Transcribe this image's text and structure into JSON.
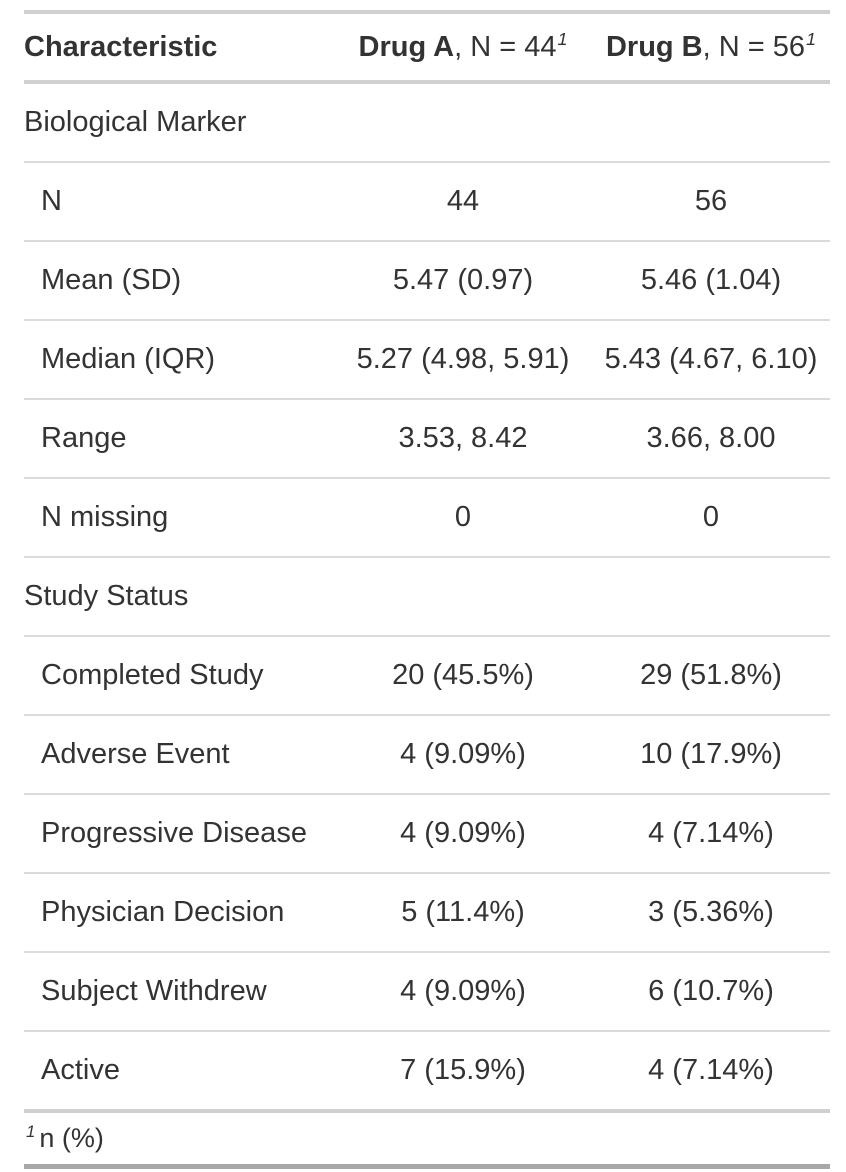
{
  "chart_data": {
    "type": "table",
    "header": {
      "characteristic": "Characteristic",
      "drug_a": {
        "name": "Drug A",
        "suffix": ", N = 44",
        "footnote_mark": "1"
      },
      "drug_b": {
        "name": "Drug B",
        "suffix": ", N = 56",
        "footnote_mark": "1"
      }
    },
    "rows": [
      {
        "label": "Biological Marker",
        "group": true,
        "indent": false,
        "drug_a": "",
        "drug_b": ""
      },
      {
        "label": "N",
        "group": false,
        "indent": true,
        "drug_a": "44",
        "drug_b": "56"
      },
      {
        "label": "Mean (SD)",
        "group": false,
        "indent": true,
        "drug_a": "5.47 (0.97)",
        "drug_b": "5.46 (1.04)"
      },
      {
        "label": "Median (IQR)",
        "group": false,
        "indent": true,
        "drug_a": "5.27 (4.98, 5.91)",
        "drug_b": "5.43 (4.67, 6.10)"
      },
      {
        "label": "Range",
        "group": false,
        "indent": true,
        "drug_a": "3.53, 8.42",
        "drug_b": "3.66, 8.00"
      },
      {
        "label": "N missing",
        "group": false,
        "indent": true,
        "drug_a": "0",
        "drug_b": "0"
      },
      {
        "label": "Study Status",
        "group": true,
        "indent": false,
        "drug_a": "",
        "drug_b": ""
      },
      {
        "label": "Completed Study",
        "group": false,
        "indent": true,
        "drug_a": "20 (45.5%)",
        "drug_b": "29 (51.8%)"
      },
      {
        "label": "Adverse Event",
        "group": false,
        "indent": true,
        "drug_a": "4 (9.09%)",
        "drug_b": "10 (17.9%)"
      },
      {
        "label": "Progressive Disease",
        "group": false,
        "indent": true,
        "drug_a": "4 (9.09%)",
        "drug_b": "4 (7.14%)"
      },
      {
        "label": "Physician Decision",
        "group": false,
        "indent": true,
        "drug_a": "5 (11.4%)",
        "drug_b": "3 (5.36%)"
      },
      {
        "label": "Subject Withdrew",
        "group": false,
        "indent": true,
        "drug_a": "4 (9.09%)",
        "drug_b": "6 (10.7%)"
      },
      {
        "label": "Active",
        "group": false,
        "indent": true,
        "drug_a": "7 (15.9%)",
        "drug_b": "4 (7.14%)"
      }
    ],
    "footnote": {
      "mark": "1",
      "text": "n (%)"
    }
  },
  "colors": {
    "text": "#333333",
    "border_light": "#DBDBDB",
    "border_mid": "#D0D0D0",
    "border_dark": "#A8A8A8",
    "background": "#FFFFFF"
  }
}
